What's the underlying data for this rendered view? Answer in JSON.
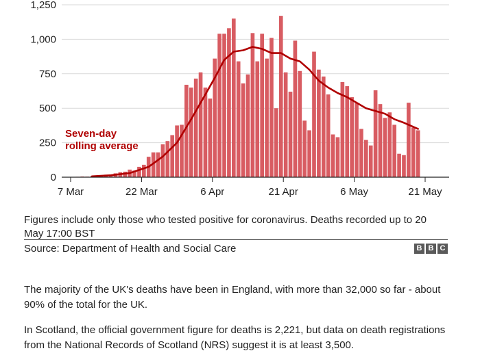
{
  "chart_data": {
    "type": "bar",
    "y_ticks": [
      "1,250",
      "1,000",
      "750",
      "500",
      "250",
      "0"
    ],
    "y_tick_values": [
      1250,
      1000,
      750,
      500,
      250,
      0
    ],
    "ylim": [
      0,
      1250
    ],
    "x_ticks": [
      "7 Mar",
      "22 Mar",
      "6 Apr",
      "21 Apr",
      "6 May",
      "21 May"
    ],
    "x_tick_dates": [
      "2020-03-07",
      "2020-03-22",
      "2020-04-06",
      "2020-04-21",
      "2020-05-06",
      "2020-05-21"
    ],
    "grid": true,
    "bar_color": "#d85c62",
    "line_color": "#b00000",
    "annotation": [
      "Seven-day",
      "rolling average"
    ],
    "daily_deaths": [
      {
        "date": "2020-03-08",
        "value": 2
      },
      {
        "date": "2020-03-09",
        "value": 3
      },
      {
        "date": "2020-03-10",
        "value": 5
      },
      {
        "date": "2020-03-11",
        "value": 4
      },
      {
        "date": "2020-03-12",
        "value": 6
      },
      {
        "date": "2020-03-13",
        "value": 8
      },
      {
        "date": "2020-03-14",
        "value": 14
      },
      {
        "date": "2020-03-15",
        "value": 18
      },
      {
        "date": "2020-03-16",
        "value": 20
      },
      {
        "date": "2020-03-17",
        "value": 28
      },
      {
        "date": "2020-03-18",
        "value": 36
      },
      {
        "date": "2020-03-19",
        "value": 40
      },
      {
        "date": "2020-03-20",
        "value": 55
      },
      {
        "date": "2020-03-21",
        "value": 48
      },
      {
        "date": "2020-03-22",
        "value": 75
      },
      {
        "date": "2020-03-23",
        "value": 90
      },
      {
        "date": "2020-03-24",
        "value": 148
      },
      {
        "date": "2020-03-25",
        "value": 180
      },
      {
        "date": "2020-03-26",
        "value": 180
      },
      {
        "date": "2020-03-27",
        "value": 238
      },
      {
        "date": "2020-03-28",
        "value": 262
      },
      {
        "date": "2020-03-29",
        "value": 305
      },
      {
        "date": "2020-03-30",
        "value": 375
      },
      {
        "date": "2020-03-31",
        "value": 380
      },
      {
        "date": "2020-04-01",
        "value": 670
      },
      {
        "date": "2020-04-02",
        "value": 650
      },
      {
        "date": "2020-04-03",
        "value": 715
      },
      {
        "date": "2020-04-04",
        "value": 760
      },
      {
        "date": "2020-04-05",
        "value": 650
      },
      {
        "date": "2020-04-06",
        "value": 570
      },
      {
        "date": "2020-04-07",
        "value": 860
      },
      {
        "date": "2020-04-08",
        "value": 1040
      },
      {
        "date": "2020-04-09",
        "value": 1040
      },
      {
        "date": "2020-04-10",
        "value": 1080
      },
      {
        "date": "2020-04-11",
        "value": 1150
      },
      {
        "date": "2020-04-12",
        "value": 840
      },
      {
        "date": "2020-04-13",
        "value": 680
      },
      {
        "date": "2020-04-14",
        "value": 745
      },
      {
        "date": "2020-04-15",
        "value": 1045
      },
      {
        "date": "2020-04-16",
        "value": 840
      },
      {
        "date": "2020-04-17",
        "value": 1040
      },
      {
        "date": "2020-04-18",
        "value": 860
      },
      {
        "date": "2020-04-19",
        "value": 1010
      },
      {
        "date": "2020-04-20",
        "value": 500
      },
      {
        "date": "2020-04-21",
        "value": 1170
      },
      {
        "date": "2020-04-22",
        "value": 760
      },
      {
        "date": "2020-04-23",
        "value": 620
      },
      {
        "date": "2020-04-24",
        "value": 990
      },
      {
        "date": "2020-04-25",
        "value": 770
      },
      {
        "date": "2020-04-26",
        "value": 410
      },
      {
        "date": "2020-04-27",
        "value": 340
      },
      {
        "date": "2020-04-28",
        "value": 910
      },
      {
        "date": "2020-04-29",
        "value": 780
      },
      {
        "date": "2020-04-30",
        "value": 730
      },
      {
        "date": "2020-05-01",
        "value": 600
      },
      {
        "date": "2020-05-02",
        "value": 310
      },
      {
        "date": "2020-05-03",
        "value": 290
      },
      {
        "date": "2020-05-04",
        "value": 690
      },
      {
        "date": "2020-05-05",
        "value": 660
      },
      {
        "date": "2020-05-06",
        "value": 580
      },
      {
        "date": "2020-05-07",
        "value": 540
      },
      {
        "date": "2020-05-08",
        "value": 350
      },
      {
        "date": "2020-05-09",
        "value": 270
      },
      {
        "date": "2020-05-10",
        "value": 230
      },
      {
        "date": "2020-05-11",
        "value": 630
      },
      {
        "date": "2020-05-12",
        "value": 530
      },
      {
        "date": "2020-05-13",
        "value": 430
      },
      {
        "date": "2020-05-14",
        "value": 470
      },
      {
        "date": "2020-05-15",
        "value": 380
      },
      {
        "date": "2020-05-16",
        "value": 170
      },
      {
        "date": "2020-05-17",
        "value": 160
      },
      {
        "date": "2020-05-18",
        "value": 540
      },
      {
        "date": "2020-05-19",
        "value": 360
      },
      {
        "date": "2020-05-20",
        "value": 340
      }
    ],
    "rolling_average": [
      {
        "date": "2020-03-12",
        "value": 6
      },
      {
        "date": "2020-03-16",
        "value": 14
      },
      {
        "date": "2020-03-20",
        "value": 30
      },
      {
        "date": "2020-03-24",
        "value": 75
      },
      {
        "date": "2020-03-27",
        "value": 150
      },
      {
        "date": "2020-03-30",
        "value": 250
      },
      {
        "date": "2020-04-02",
        "value": 420
      },
      {
        "date": "2020-04-05",
        "value": 600
      },
      {
        "date": "2020-04-07",
        "value": 720
      },
      {
        "date": "2020-04-09",
        "value": 850
      },
      {
        "date": "2020-04-11",
        "value": 910
      },
      {
        "date": "2020-04-13",
        "value": 920
      },
      {
        "date": "2020-04-15",
        "value": 945
      },
      {
        "date": "2020-04-17",
        "value": 930
      },
      {
        "date": "2020-04-19",
        "value": 900
      },
      {
        "date": "2020-04-21",
        "value": 900
      },
      {
        "date": "2020-04-23",
        "value": 860
      },
      {
        "date": "2020-04-25",
        "value": 840
      },
      {
        "date": "2020-04-27",
        "value": 780
      },
      {
        "date": "2020-04-29",
        "value": 700
      },
      {
        "date": "2020-05-01",
        "value": 650
      },
      {
        "date": "2020-05-03",
        "value": 610
      },
      {
        "date": "2020-05-05",
        "value": 580
      },
      {
        "date": "2020-05-07",
        "value": 540
      },
      {
        "date": "2020-05-09",
        "value": 500
      },
      {
        "date": "2020-05-11",
        "value": 480
      },
      {
        "date": "2020-05-13",
        "value": 460
      },
      {
        "date": "2020-05-15",
        "value": 420
      },
      {
        "date": "2020-05-17",
        "value": 395
      },
      {
        "date": "2020-05-20",
        "value": 350
      }
    ]
  },
  "note": "Figures include only those who tested positive for coronavirus. Deaths recorded up to 20 May 17:00 BST",
  "source": "Source: Department of Health and Social Care",
  "logo_letters": [
    "B",
    "B",
    "C"
  ],
  "paragraphs": [
    "The majority of the UK's deaths have been in England, with more than 32,000 so far - about 90% of the total for the UK.",
    "In Scotland, the official government figure for deaths is 2,221, but data on death registrations from the National Records of Scotland (NRS) suggest it is at least 3,500."
  ]
}
